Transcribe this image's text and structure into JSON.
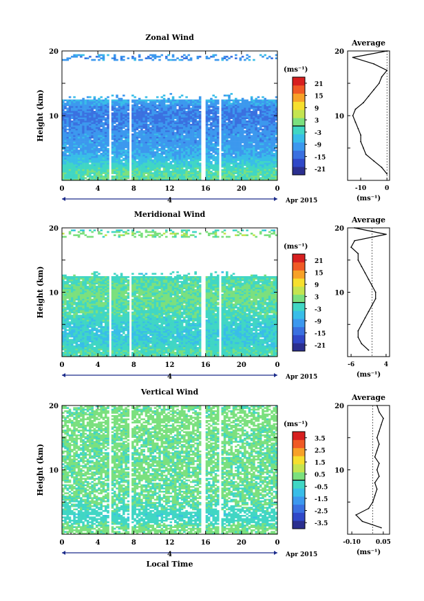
{
  "date_label": "Apr 2015",
  "day_label": "4",
  "xlabel": "Local Time",
  "ylabel": "Height (km)",
  "unit_label": "(ms⁻¹)",
  "avg_title": "Average",
  "x_ticks": [
    "0",
    "4",
    "8",
    "12",
    "16",
    "20",
    "0"
  ],
  "y_ticks": [
    "10",
    "20"
  ],
  "colors": {
    "colormap": [
      "#2b2f8f",
      "#3048c8",
      "#3a70e0",
      "#3c98ee",
      "#38bde8",
      "#40d6c4",
      "#7be07e",
      "#c4e450",
      "#f6df2e",
      "#f7a128",
      "#f05a25",
      "#d71f1f"
    ],
    "line": "#000000",
    "axis_blue": "#1a2a8a"
  },
  "chart_data": [
    {
      "type": "heatmap",
      "title": "Zonal Wind",
      "x_range": [
        0,
        24
      ],
      "y_range": [
        0,
        20
      ],
      "colorbar_ticks": [
        "21",
        "15",
        "9",
        "3",
        "-3",
        "-9",
        "-15",
        "-21"
      ],
      "colorbar_range": [
        -24,
        24
      ],
      "gaps_hours": [
        5.4,
        7.6,
        15.7,
        17.6
      ],
      "profile": {
        "title": "Average",
        "x_ticks": [
          "-10",
          "0"
        ],
        "xlim": [
          -15,
          1
        ],
        "height_km": [
          1,
          2,
          3,
          4,
          5,
          6,
          7,
          8,
          9,
          10,
          11,
          12,
          13,
          14,
          15,
          16,
          17,
          18,
          19,
          20
        ],
        "values": [
          0,
          -2,
          -5,
          -8,
          -9,
          -10,
          -10,
          -11,
          -12,
          -13,
          -12,
          -9,
          -7,
          -5,
          -3,
          -2,
          0,
          -5,
          -13,
          0
        ]
      }
    },
    {
      "type": "heatmap",
      "title": "Meridional Wind",
      "x_range": [
        0,
        24
      ],
      "y_range": [
        0,
        20
      ],
      "colorbar_ticks": [
        "21",
        "15",
        "9",
        "3",
        "-3",
        "-9",
        "-15",
        "-21"
      ],
      "colorbar_range": [
        -24,
        24
      ],
      "gaps_hours": [
        5.4,
        7.6,
        15.7,
        17.6
      ],
      "profile": {
        "title": "Average",
        "x_ticks": [
          "-6",
          "4"
        ],
        "xlim": [
          -7,
          5
        ],
        "height_km": [
          1,
          2,
          3,
          4,
          5,
          6,
          7,
          8,
          9,
          10,
          11,
          12,
          13,
          14,
          15,
          16,
          17,
          18,
          19,
          20
        ],
        "values": [
          -1,
          -3,
          -4,
          -4,
          -3,
          -2,
          -1,
          0,
          1,
          1,
          0,
          -1,
          -2,
          -3,
          -4,
          -4,
          -6,
          -5,
          4,
          -5
        ]
      }
    },
    {
      "type": "heatmap",
      "title": "Vertical Wind",
      "x_range": [
        0,
        24
      ],
      "y_range": [
        0,
        20
      ],
      "colorbar_ticks": [
        "3.5",
        "2.5",
        "1.5",
        "0.5",
        "-0.5",
        "-1.5",
        "-2.5",
        "-3.5"
      ],
      "colorbar_range": [
        -4,
        4
      ],
      "gaps_hours": [
        5.4,
        7.6,
        15.7,
        17.6
      ],
      "profile": {
        "title": "Average",
        "x_ticks": [
          "-0.10",
          "0.05"
        ],
        "xlim": [
          -0.12,
          0.08
        ],
        "height_km": [
          1,
          2,
          3,
          4,
          5,
          6,
          7,
          8,
          9,
          10,
          11,
          12,
          13,
          14,
          15,
          16,
          17,
          18,
          19,
          20
        ],
        "values": [
          0.04,
          -0.05,
          -0.08,
          -0.02,
          0.0,
          0.01,
          0.02,
          0.01,
          0.03,
          0.02,
          0.03,
          0.01,
          0.02,
          0.03,
          0.02,
          0.03,
          0.04,
          0.05,
          0.03,
          0.02
        ]
      }
    }
  ]
}
